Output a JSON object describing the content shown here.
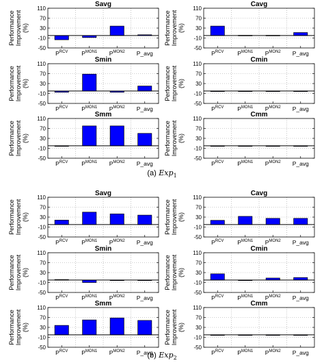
{
  "captions": [
    {
      "tag": "(a)",
      "label": "Exp",
      "sub": "1"
    },
    {
      "tag": "(b)",
      "label": "Exp",
      "sub": "2"
    }
  ],
  "ylabel_lines": [
    "Performance",
    "Improvement",
    "(%)"
  ],
  "categories": [
    {
      "base": "P",
      "sup": "RCV"
    },
    {
      "base": "P",
      "sup": "MON1"
    },
    {
      "base": "P",
      "sup": "MON2"
    },
    {
      "base": "P_avg",
      "sup": ""
    }
  ],
  "colors": {
    "bar": "#0000ff",
    "bar_edge": "#000000",
    "grid": "#9a9a9a"
  },
  "chart_data": [
    {
      "type": "bar",
      "group": "a",
      "title": "Savg",
      "ylim": [
        -50,
        110
      ],
      "yticks": [
        -50,
        -10,
        30,
        70,
        110
      ],
      "grid": true,
      "values": [
        -17,
        -8,
        38,
        3
      ]
    },
    {
      "type": "bar",
      "group": "a",
      "title": "Cavg",
      "ylim": [
        -50,
        110
      ],
      "yticks": [
        -50,
        -10,
        30,
        70,
        110
      ],
      "grid": true,
      "values": [
        38,
        1,
        1,
        12
      ]
    },
    {
      "type": "bar",
      "group": "a",
      "title": "Smin",
      "ylim": [
        -50,
        110
      ],
      "yticks": [
        -50,
        -10,
        30,
        70,
        110
      ],
      "grid": true,
      "values": [
        -5,
        68,
        -5,
        20
      ]
    },
    {
      "type": "bar",
      "group": "a",
      "title": "Cmin",
      "ylim": [
        -50,
        110
      ],
      "yticks": [
        -50,
        -10,
        30,
        70,
        110
      ],
      "grid": true,
      "values": [
        0,
        0,
        0,
        0
      ]
    },
    {
      "type": "bar",
      "group": "a",
      "title": "Smm",
      "ylim": [
        -50,
        110
      ],
      "yticks": [
        -50,
        -10,
        30,
        70,
        110
      ],
      "grid": true,
      "values": [
        -2,
        80,
        80,
        50
      ]
    },
    {
      "type": "bar",
      "group": "a",
      "title": "Cmm",
      "ylim": [
        -50,
        110
      ],
      "yticks": [
        -50,
        -10,
        30,
        70,
        110
      ],
      "grid": true,
      "values": [
        0,
        0,
        0,
        0
      ]
    },
    {
      "type": "bar",
      "group": "b",
      "title": "Savg",
      "ylim": [
        -50,
        110
      ],
      "yticks": [
        -50,
        -10,
        30,
        70,
        110
      ],
      "grid": true,
      "values": [
        18,
        50,
        43,
        38
      ]
    },
    {
      "type": "bar",
      "group": "b",
      "title": "Cavg",
      "ylim": [
        -50,
        110
      ],
      "yticks": [
        -50,
        -10,
        30,
        70,
        110
      ],
      "grid": true,
      "values": [
        17,
        33,
        25,
        25
      ]
    },
    {
      "type": "bar",
      "group": "b",
      "title": "Smin",
      "ylim": [
        -50,
        110
      ],
      "yticks": [
        -50,
        -10,
        30,
        70,
        110
      ],
      "grid": true,
      "values": [
        2,
        -10,
        0,
        0
      ]
    },
    {
      "type": "bar",
      "group": "b",
      "title": "Cmin",
      "ylim": [
        -50,
        110
      ],
      "yticks": [
        -50,
        -10,
        30,
        70,
        110
      ],
      "grid": true,
      "values": [
        25,
        0,
        8,
        10
      ]
    },
    {
      "type": "bar",
      "group": "b",
      "title": "Smm",
      "ylim": [
        -50,
        110
      ],
      "yticks": [
        -50,
        -10,
        30,
        70,
        110
      ],
      "grid": true,
      "values": [
        38,
        60,
        68,
        58
      ]
    },
    {
      "type": "bar",
      "group": "b",
      "title": "Cmm",
      "ylim": [
        -50,
        110
      ],
      "yticks": [
        -50,
        -10,
        30,
        70,
        110
      ],
      "grid": true,
      "values": [
        0,
        0,
        0,
        0
      ]
    }
  ]
}
